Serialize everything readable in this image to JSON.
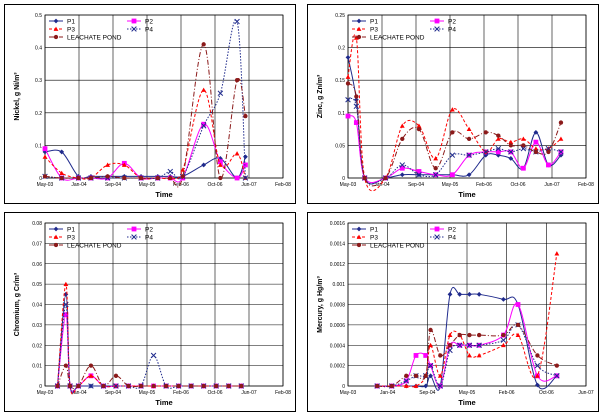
{
  "chart_data": [
    {
      "type": "line",
      "panel": "nickel",
      "ylabel": "Nickel, g Ni/m³",
      "xlabel": "Time",
      "ylim": [
        0,
        0.5
      ],
      "yticks": [
        "0",
        "0.1",
        "0.2",
        "0.3",
        "0.4",
        "0.5"
      ],
      "xticks": [
        "May-03",
        "Jan-04",
        "Sep-04",
        "May-05",
        "Feb-06",
        "Oct-06",
        "Jun-07",
        "Feb-08"
      ],
      "x_range_months": [
        0,
        57
      ],
      "grid": true,
      "legend_position": "top-left",
      "series": [
        {
          "name": "P1",
          "color": "#1f2a8c",
          "dash": "",
          "marker": "diamond",
          "x": [
            0,
            4,
            8,
            11,
            15,
            19,
            23,
            27,
            30,
            33,
            38,
            42,
            46,
            48
          ],
          "y": [
            0.08,
            0.08,
            0.005,
            0.005,
            0.005,
            0.005,
            0.005,
            0.005,
            0.005,
            0.005,
            0.04,
            0.06,
            0.0,
            0.065
          ]
        },
        {
          "name": "P2",
          "color": "#ff00ff",
          "dash": "",
          "marker": "square",
          "x": [
            0,
            4,
            8,
            11,
            15,
            19,
            23,
            27,
            30,
            33,
            38,
            42,
            46,
            48
          ],
          "y": [
            0.09,
            0.0,
            0.0,
            0.0,
            0.0,
            0.045,
            0.0,
            0.0,
            0.0,
            0.0,
            0.165,
            0.05,
            0.0,
            0.04
          ]
        },
        {
          "name": "P3",
          "color": "#ff0000",
          "dash": "3,2",
          "marker": "triangle",
          "x": [
            0,
            4,
            8,
            11,
            15,
            19,
            23,
            27,
            30,
            33,
            38,
            42,
            46,
            48
          ],
          "y": [
            0.065,
            0.015,
            0.0,
            0.0,
            0.04,
            0.04,
            0.0,
            0.0,
            0.0,
            0.025,
            0.27,
            0.04,
            0.075,
            0.0
          ]
        },
        {
          "name": "P4",
          "color": "#1f2a8c",
          "dash": "1.5,1.5",
          "marker": "x",
          "x": [
            0,
            4,
            8,
            11,
            15,
            19,
            23,
            27,
            30,
            33,
            38,
            42,
            46,
            48
          ],
          "y": [
            0.005,
            0.0,
            0.0,
            0.0,
            0.0,
            0.0,
            0.0,
            0.0,
            0.02,
            0.005,
            0.16,
            0.26,
            0.48,
            0.0
          ]
        },
        {
          "name": "LEACHATE POND",
          "color": "#8b1a1a",
          "dash": "5,2,1,2",
          "marker": "circle",
          "x": [
            0,
            4,
            8,
            11,
            15,
            19,
            23,
            27,
            30,
            33,
            38,
            42,
            46,
            48
          ],
          "y": [
            0.005,
            0.0,
            0.0,
            0.0,
            0.005,
            0.0,
            0.0,
            0.0,
            0.0,
            0.005,
            0.41,
            0.0,
            0.3,
            0.19
          ]
        }
      ],
      "legend": [
        "P1",
        "P2",
        "P3",
        "P4",
        "LEACHATE POND"
      ]
    },
    {
      "type": "line",
      "panel": "zinc",
      "ylabel": "Zinc, g Zn/m³",
      "xlabel": "Time",
      "ylim": [
        0,
        0.25
      ],
      "yticks": [
        "0",
        "0.05",
        "0.1",
        "0.15",
        "0.2",
        "0.25"
      ],
      "xticks": [
        "May-03",
        "Jan-04",
        "Sep-04",
        "May-05",
        "Feb-06",
        "Oct-06",
        "Jun-07",
        "Feb-08"
      ],
      "x_range_months": [
        0,
        57
      ],
      "grid": true,
      "legend_position": "top-left",
      "series": [
        {
          "name": "P1",
          "color": "#1f2a8c",
          "dash": "",
          "marker": "diamond",
          "x": [
            0,
            2,
            4,
            9,
            13,
            17,
            21,
            25,
            29,
            33,
            36,
            39,
            42,
            45,
            48,
            51
          ],
          "y": [
            0.185,
            0.12,
            0.0,
            0.0,
            0.005,
            0.005,
            0.005,
            0.005,
            0.005,
            0.035,
            0.035,
            0.03,
            0.015,
            0.07,
            0.02,
            0.035
          ]
        },
        {
          "name": "P2",
          "color": "#ff00ff",
          "dash": "",
          "marker": "square",
          "x": [
            0,
            2,
            4,
            9,
            13,
            17,
            21,
            25,
            29,
            33,
            36,
            39,
            42,
            45,
            48,
            51
          ],
          "y": [
            0.095,
            0.085,
            0.0,
            0.0,
            0.015,
            0.01,
            0.005,
            0.005,
            0.035,
            0.04,
            0.04,
            0.04,
            0.015,
            0.055,
            0.02,
            0.04
          ]
        },
        {
          "name": "P3",
          "color": "#ff0000",
          "dash": "3,2",
          "marker": "triangle",
          "x": [
            0,
            2,
            4,
            9,
            13,
            17,
            21,
            25,
            29,
            33,
            36,
            39,
            42,
            45,
            48,
            51
          ],
          "y": [
            0.155,
            0.215,
            0.0,
            0.0,
            0.08,
            0.08,
            0.03,
            0.105,
            0.075,
            0.04,
            0.06,
            0.055,
            0.06,
            0.045,
            0.045,
            0.06
          ]
        },
        {
          "name": "P4",
          "color": "#1f2a8c",
          "dash": "1.5,1.5",
          "marker": "x",
          "x": [
            0,
            2,
            4,
            9,
            13,
            17,
            21,
            25,
            29,
            33,
            36,
            39,
            42,
            45,
            48,
            51
          ],
          "y": [
            0.12,
            0.11,
            0.0,
            0.0,
            0.02,
            0.005,
            0.005,
            0.035,
            0.035,
            0.04,
            0.045,
            0.04,
            0.045,
            0.04,
            0.045,
            0.04
          ]
        },
        {
          "name": "LEACHATE POND",
          "color": "#8b1a1a",
          "dash": "5,2,1,2",
          "marker": "circle",
          "x": [
            0,
            2,
            4,
            9,
            13,
            17,
            21,
            25,
            29,
            33,
            36,
            39,
            42,
            45,
            48,
            51
          ],
          "y": [
            0.145,
            0.125,
            0.0,
            0.0,
            0.06,
            0.075,
            0.015,
            0.07,
            0.06,
            0.07,
            0.065,
            0.05,
            0.05,
            0.04,
            0.04,
            0.085
          ]
        }
      ],
      "legend": [
        "P1",
        "P2",
        "P3",
        "P4",
        "LEACHATE POND"
      ]
    },
    {
      "type": "line",
      "panel": "chromium",
      "ylabel": "Chromium, g Cr/m³",
      "xlabel": "Time",
      "ylim": [
        0,
        0.08
      ],
      "yticks": [
        "0",
        "0.01",
        "0.02",
        "0.03",
        "0.04",
        "0.05",
        "0.06",
        "0.07",
        "0.08"
      ],
      "xticks": [
        "May-03",
        "Jan-04",
        "Sep-04",
        "May-05",
        "Feb-06",
        "Oct-06",
        "Jun-07",
        "Feb-08"
      ],
      "x_range_months": [
        0,
        57
      ],
      "grid": true,
      "legend_position": "top",
      "series": [
        {
          "name": "P1",
          "color": "#1f2a8c",
          "dash": "",
          "marker": "diamond",
          "x": [
            3,
            5,
            6,
            8,
            11,
            14,
            17,
            20,
            23,
            26,
            29,
            32,
            35,
            38,
            41,
            44,
            47
          ],
          "y": [
            0.0,
            0.045,
            0.0,
            0.0,
            0.0,
            0.0,
            0.0,
            0.0,
            0.0,
            0.0,
            0.0,
            0.0,
            0.0,
            0.0,
            0.0,
            0.0,
            0.0
          ]
        },
        {
          "name": "P2",
          "color": "#ff00ff",
          "dash": "",
          "marker": "square",
          "x": [
            3,
            5,
            6,
            8,
            11,
            14,
            17,
            20,
            23,
            26,
            29,
            32,
            35,
            38,
            41,
            44,
            47
          ],
          "y": [
            0.0,
            0.035,
            0.0,
            0.0,
            0.005,
            0.0,
            0.0,
            0.0,
            0.0,
            0.0,
            0.0,
            0.0,
            0.0,
            0.0,
            0.0,
            0.0,
            0.0
          ]
        },
        {
          "name": "P3",
          "color": "#ff0000",
          "dash": "3,2",
          "marker": "triangle",
          "x": [
            3,
            5,
            6,
            8,
            11,
            14,
            17,
            20,
            23,
            26,
            29,
            32,
            35,
            38,
            41,
            44,
            47
          ],
          "y": [
            0.0,
            0.05,
            0.0,
            0.0,
            0.005,
            0.0,
            0.0,
            0.0,
            0.0,
            0.0,
            0.0,
            0.0,
            0.0,
            0.0,
            0.0,
            0.0,
            0.0
          ]
        },
        {
          "name": "P4",
          "color": "#1f2a8c",
          "dash": "1.5,1.5",
          "marker": "x",
          "x": [
            3,
            5,
            6,
            8,
            11,
            14,
            17,
            20,
            23,
            26,
            29,
            32,
            35,
            38,
            41,
            44,
            47
          ],
          "y": [
            0.0,
            0.04,
            0.0,
            0.0,
            0.0,
            0.0,
            0.0,
            0.0,
            0.0,
            0.015,
            0.0,
            0.0,
            0.0,
            0.0,
            0.0,
            0.0,
            0.0
          ]
        },
        {
          "name": "LEACHATE POND",
          "color": "#8b1a1a",
          "dash": "5,2,1,2",
          "marker": "circle",
          "x": [
            3,
            5,
            6,
            8,
            11,
            14,
            17,
            20,
            23,
            26,
            29,
            32,
            35,
            38,
            41,
            44,
            47
          ],
          "y": [
            0.0,
            0.01,
            0.0,
            0.0,
            0.01,
            0.0,
            0.005,
            0.0,
            0.0,
            0.0,
            0.0,
            0.0,
            0.0,
            0.0,
            0.0,
            0.0,
            0.0
          ]
        }
      ],
      "legend": [
        "P1",
        "P2",
        "P3",
        "P4",
        "LEACHATE POND"
      ]
    },
    {
      "type": "line",
      "panel": "mercury",
      "ylabel": "Mercury, g Hg/m³",
      "xlabel": "Time",
      "ylim": [
        0,
        0.0016
      ],
      "yticks": [
        "0",
        "0.0002",
        "0.0004",
        "0.0006",
        "0.0008",
        "0.001",
        "0.0012",
        "0.0014",
        "0.0016"
      ],
      "xticks": [
        "May-03",
        "Jan-04",
        "Sep-04",
        "May-05",
        "Feb-06",
        "Oct-06",
        "Jun-07"
      ],
      "x_range_months": [
        0,
        49
      ],
      "grid": true,
      "legend_position": "top",
      "series": [
        {
          "name": "P1",
          "color": "#1f2a8c",
          "dash": "",
          "marker": "diamond",
          "x": [
            6,
            9,
            12,
            14,
            16,
            17,
            19,
            21,
            23,
            25,
            27,
            32,
            35,
            39,
            43
          ],
          "y": [
            0.0,
            0.0,
            0.0,
            0.0,
            0.0,
            0.0001,
            0.0,
            0.0009,
            0.0009,
            0.0009,
            0.0009,
            0.00085,
            0.0008,
            1e-05,
            0.0001
          ]
        },
        {
          "name": "P2",
          "color": "#ff00ff",
          "dash": "",
          "marker": "square",
          "x": [
            6,
            9,
            12,
            14,
            16,
            17,
            19,
            21,
            23,
            25,
            27,
            32,
            35,
            39,
            43
          ],
          "y": [
            0.0,
            0.0,
            5e-05,
            0.0003,
            0.0003,
            0.0002,
            0.0,
            0.0004,
            0.0004,
            0.0004,
            0.0004,
            0.0005,
            0.0008,
            0.0001,
            0.0001
          ]
        },
        {
          "name": "P3",
          "color": "#ff0000",
          "dash": "3,2",
          "marker": "triangle",
          "x": [
            6,
            9,
            12,
            14,
            16,
            17,
            19,
            21,
            23,
            25,
            27,
            32,
            35,
            39,
            43
          ],
          "y": [
            0.0,
            0.0,
            0.0,
            0.0,
            0.0001,
            0.0004,
            0.0001,
            0.0005,
            0.0005,
            0.0003,
            0.0003,
            0.0004,
            0.0005,
            0.0001,
            0.0013
          ]
        },
        {
          "name": "P4",
          "color": "#1f2a8c",
          "dash": "1.5,1.5",
          "marker": "x",
          "x": [
            6,
            9,
            12,
            14,
            16,
            17,
            19,
            21,
            23,
            25,
            27,
            32,
            35,
            39,
            43
          ],
          "y": [
            0.0,
            0.0,
            5e-05,
            0.0001,
            0.0001,
            0.0002,
            0.0,
            0.00035,
            0.0004,
            0.0004,
            0.0004,
            0.00045,
            0.0006,
            0.0002,
            0.0001
          ]
        },
        {
          "name": "LEACHATE POND",
          "color": "#8b1a1a",
          "dash": "5,2,1,2",
          "marker": "circle",
          "x": [
            6,
            9,
            12,
            14,
            16,
            17,
            19,
            21,
            23,
            25,
            27,
            32,
            35,
            39,
            43
          ],
          "y": [
            0.0,
            0.0,
            0.0001,
            0.0001,
            0.0001,
            0.00055,
            0.0003,
            0.0004,
            0.0005,
            0.0005,
            0.0005,
            0.0005,
            0.0006,
            0.0003,
            0.0002
          ]
        }
      ],
      "legend": [
        "P1",
        "P2",
        "P3",
        "P4",
        "LEACHATE POND"
      ]
    }
  ]
}
